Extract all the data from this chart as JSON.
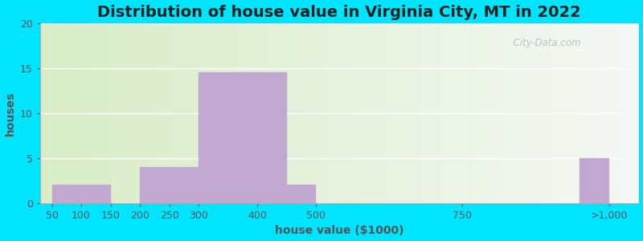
{
  "title": "Distribution of house value in Virginia City, MT in 2022",
  "xlabel": "house value ($1000)",
  "ylabel": "houses",
  "xtick_positions": [
    50,
    100,
    150,
    200,
    250,
    300,
    400,
    500,
    750,
    1000
  ],
  "xtick_labels": [
    "50",
    "100",
    "150",
    "200",
    "250",
    "300",
    "400",
    "500",
    "750",
    ">1,000"
  ],
  "bar_lefts": [
    50,
    100,
    200,
    250,
    300,
    400,
    450,
    950
  ],
  "bar_widths": [
    50,
    50,
    50,
    50,
    100,
    50,
    50,
    50
  ],
  "bar_values": [
    2,
    2,
    4,
    4,
    14.5,
    14.5,
    2,
    5
  ],
  "bar_color": "#c0a8d0",
  "ylim": [
    0,
    20
  ],
  "yticks": [
    0,
    5,
    10,
    15,
    20
  ],
  "xlim": [
    30,
    1050
  ],
  "background_outer": "#00e5ff",
  "background_inner_left_color": "#d8edc8",
  "background_inner_right_color": "#f5f5f0",
  "grid_color": "#ffffff",
  "title_fontsize": 14,
  "label_fontsize": 10,
  "tick_fontsize": 9,
  "tick_color": "#555555",
  "watermark_text": "  City-Data.com",
  "watermark_color": "#aabbc0"
}
